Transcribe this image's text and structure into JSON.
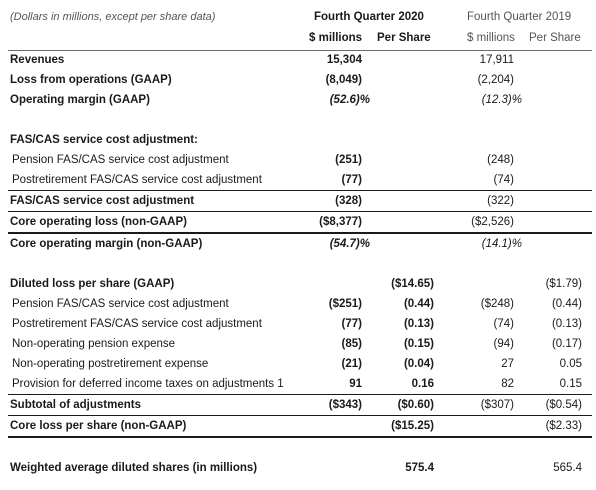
{
  "header": {
    "caption": "(Dollars in millions, except per share data)",
    "period_1": "Fourth Quarter 2020",
    "period_2": "Fourth Quarter 2019",
    "sub_1a": "$ millions",
    "sub_1b": "Per Share",
    "sub_2a": "$ millions",
    "sub_2b": "Per Share"
  },
  "rows": [
    {
      "label": "Revenues",
      "c1": "15,304",
      "c2": "",
      "c3": "17,911",
      "c4": ""
    },
    {
      "label": "Loss from operations (GAAP)",
      "c1": "(8,049)",
      "c2": "",
      "c3": "(2,204)",
      "c4": ""
    },
    {
      "label": "Operating margin (GAAP)",
      "c1": "(52.6)%",
      "c2": "",
      "c3": "(12.3)%",
      "c4": ""
    },
    {
      "label": "FAS/CAS service cost adjustment:",
      "c1": "",
      "c2": "",
      "c3": "",
      "c4": ""
    },
    {
      "label": "Pension FAS/CAS service cost adjustment",
      "c1": "(251)",
      "c2": "",
      "c3": "(248)",
      "c4": ""
    },
    {
      "label": "Postretirement FAS/CAS service cost adjustment",
      "c1": "(77)",
      "c2": "",
      "c3": "(74)",
      "c4": ""
    },
    {
      "label": "FAS/CAS service cost adjustment",
      "c1": "(328)",
      "c2": "",
      "c3": "(322)",
      "c4": ""
    },
    {
      "label": "Core operating loss (non-GAAP)",
      "c1": "($8,377)",
      "c2": "",
      "c3": "($2,526)",
      "c4": ""
    },
    {
      "label": "Core operating margin (non-GAAP)",
      "c1": "(54.7)%",
      "c2": "",
      "c3": "(14.1)%",
      "c4": ""
    },
    {
      "label": "Diluted loss per share (GAAP)",
      "c1": "",
      "c2": "($14.65)",
      "c3": "",
      "c4": "($1.79)"
    },
    {
      "label": "Pension FAS/CAS service cost adjustment",
      "c1": "($251)",
      "c2": "(0.44)",
      "c3": "($248)",
      "c4": "(0.44)"
    },
    {
      "label": "Postretirement FAS/CAS service cost adjustment",
      "c1": "(77)",
      "c2": "(0.13)",
      "c3": "(74)",
      "c4": "(0.13)"
    },
    {
      "label": "Non-operating pension expense",
      "c1": "(85)",
      "c2": "(0.15)",
      "c3": "(94)",
      "c4": "(0.17)"
    },
    {
      "label": "Non-operating postretirement expense",
      "c1": "(21)",
      "c2": "(0.04)",
      "c3": "27",
      "c4": "0.05"
    },
    {
      "label": "Provision for deferred income taxes on adjustments 1",
      "c1": "91",
      "c2": "0.16",
      "c3": "82",
      "c4": "0.15"
    },
    {
      "label": "Subtotal of adjustments",
      "c1": "($343)",
      "c2": "($0.60)",
      "c3": "($307)",
      "c4": "($0.54)"
    },
    {
      "label": "Core loss per share (non-GAAP)",
      "c1": "",
      "c2": "($15.25)",
      "c3": "",
      "c4": "($2.33)"
    },
    {
      "label": "Weighted average diluted shares (in millions)",
      "c1": "",
      "c2": "575.4",
      "c3": "",
      "c4": "565.4"
    }
  ]
}
